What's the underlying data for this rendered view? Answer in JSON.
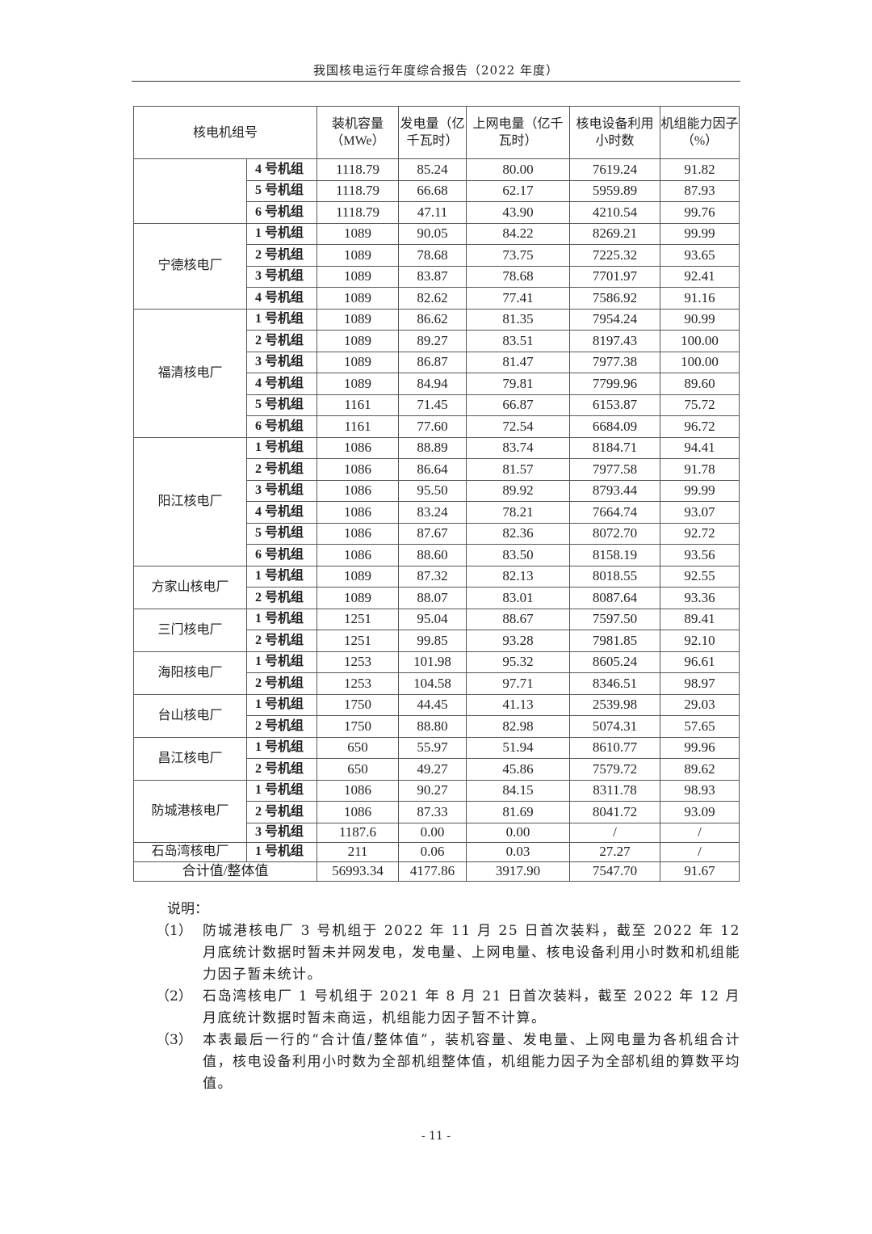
{
  "header": {
    "title": "我国核电运行年度综合报告（2022 年度）"
  },
  "table": {
    "columns": {
      "unit": "核电机组号",
      "capacity": "装机容量（MWe）",
      "generation": "发电量（亿千瓦时）",
      "grid": "上网电量（亿千瓦时）",
      "hours": "核电设备利用小时数",
      "factor": "机组能力因子（%）"
    },
    "plants": [
      {
        "name": "",
        "units": [
          [
            "4 号机组",
            "1118.79",
            "85.24",
            "80.00",
            "7619.24",
            "91.82"
          ],
          [
            "5 号机组",
            "1118.79",
            "66.68",
            "62.17",
            "5959.89",
            "87.93"
          ],
          [
            "6 号机组",
            "1118.79",
            "47.11",
            "43.90",
            "4210.54",
            "99.76"
          ]
        ]
      },
      {
        "name": "宁德核电厂",
        "units": [
          [
            "1 号机组",
            "1089",
            "90.05",
            "84.22",
            "8269.21",
            "99.99"
          ],
          [
            "2 号机组",
            "1089",
            "78.68",
            "73.75",
            "7225.32",
            "93.65"
          ],
          [
            "3 号机组",
            "1089",
            "83.87",
            "78.68",
            "7701.97",
            "92.41"
          ],
          [
            "4 号机组",
            "1089",
            "82.62",
            "77.41",
            "7586.92",
            "91.16"
          ]
        ]
      },
      {
        "name": "福清核电厂",
        "units": [
          [
            "1 号机组",
            "1089",
            "86.62",
            "81.35",
            "7954.24",
            "90.99"
          ],
          [
            "2 号机组",
            "1089",
            "89.27",
            "83.51",
            "8197.43",
            "100.00"
          ],
          [
            "3 号机组",
            "1089",
            "86.87",
            "81.47",
            "7977.38",
            "100.00"
          ],
          [
            "4 号机组",
            "1089",
            "84.94",
            "79.81",
            "7799.96",
            "89.60"
          ],
          [
            "5 号机组",
            "1161",
            "71.45",
            "66.87",
            "6153.87",
            "75.72"
          ],
          [
            "6 号机组",
            "1161",
            "77.60",
            "72.54",
            "6684.09",
            "96.72"
          ]
        ]
      },
      {
        "name": "阳江核电厂",
        "units": [
          [
            "1 号机组",
            "1086",
            "88.89",
            "83.74",
            "8184.71",
            "94.41"
          ],
          [
            "2 号机组",
            "1086",
            "86.64",
            "81.57",
            "7977.58",
            "91.78"
          ],
          [
            "3 号机组",
            "1086",
            "95.50",
            "89.92",
            "8793.44",
            "99.99"
          ],
          [
            "4 号机组",
            "1086",
            "83.24",
            "78.21",
            "7664.74",
            "93.07"
          ],
          [
            "5 号机组",
            "1086",
            "87.67",
            "82.36",
            "8072.70",
            "92.72"
          ],
          [
            "6 号机组",
            "1086",
            "88.60",
            "83.50",
            "8158.19",
            "93.56"
          ]
        ]
      },
      {
        "name": "方家山核电厂",
        "units": [
          [
            "1 号机组",
            "1089",
            "87.32",
            "82.13",
            "8018.55",
            "92.55"
          ],
          [
            "2 号机组",
            "1089",
            "88.07",
            "83.01",
            "8087.64",
            "93.36"
          ]
        ]
      },
      {
        "name": "三门核电厂",
        "units": [
          [
            "1 号机组",
            "1251",
            "95.04",
            "88.67",
            "7597.50",
            "89.41"
          ],
          [
            "2 号机组",
            "1251",
            "99.85",
            "93.28",
            "7981.85",
            "92.10"
          ]
        ]
      },
      {
        "name": "海阳核电厂",
        "units": [
          [
            "1 号机组",
            "1253",
            "101.98",
            "95.32",
            "8605.24",
            "96.61"
          ],
          [
            "2 号机组",
            "1253",
            "104.58",
            "97.71",
            "8346.51",
            "98.97"
          ]
        ]
      },
      {
        "name": "台山核电厂",
        "units": [
          [
            "1 号机组",
            "1750",
            "44.45",
            "41.13",
            "2539.98",
            "29.03"
          ],
          [
            "2 号机组",
            "1750",
            "88.80",
            "82.98",
            "5074.31",
            "57.65"
          ]
        ]
      },
      {
        "name": "昌江核电厂",
        "units": [
          [
            "1 号机组",
            "650",
            "55.97",
            "51.94",
            "8610.77",
            "99.96"
          ],
          [
            "2 号机组",
            "650",
            "49.27",
            "45.86",
            "7579.72",
            "89.62"
          ]
        ]
      },
      {
        "name": "防城港核电厂",
        "units": [
          [
            "1 号机组",
            "1086",
            "90.27",
            "84.15",
            "8311.78",
            "98.93"
          ],
          [
            "2 号机组",
            "1086",
            "87.33",
            "81.69",
            "8041.72",
            "93.09"
          ],
          [
            "3 号机组",
            "1187.6",
            "0.00",
            "0.00",
            "/",
            "/"
          ]
        ]
      },
      {
        "name": "石岛湾核电厂",
        "units": [
          [
            "1 号机组",
            "211",
            "0.06",
            "0.03",
            "27.27",
            "/"
          ]
        ]
      }
    ],
    "total": [
      "合计值/整体值",
      "56993.34",
      "4177.86",
      "3917.90",
      "7547.70",
      "91.67"
    ]
  },
  "notes": {
    "title": "说明：",
    "items": [
      {
        "num": "（1）",
        "text": "防城港核电厂 3 号机组于 2022 年 11 月 25 日首次装料，截至 2022 年 12 月底统计数据时暂未并网发电，发电量、上网电量、核电设备利用小时数和机组能力因子暂未统计。"
      },
      {
        "num": "（2）",
        "text": "石岛湾核电厂 1 号机组于 2021 年 8 月 21 日首次装料，截至 2022 年 12 月月底统计数据时暂未商运，机组能力因子暂不计算。"
      },
      {
        "num": "（3）",
        "text": "本表最后一行的“合计值/整体值”，装机容量、发电量、上网电量为各机组合计值，核电设备利用小时数为全部机组整体值，机组能力因子为全部机组的算数平均值。"
      }
    ]
  },
  "footer": {
    "page": "- 11 -"
  }
}
